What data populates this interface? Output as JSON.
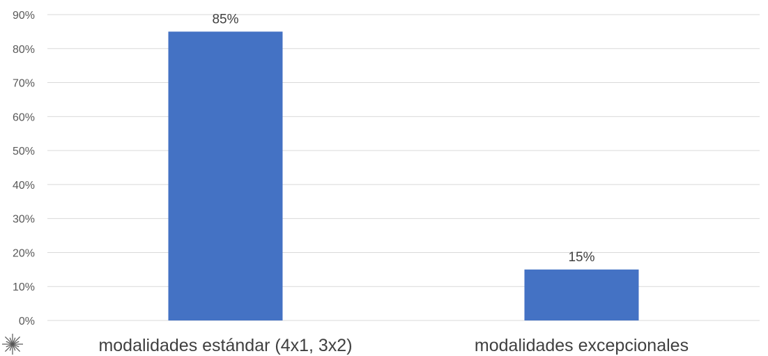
{
  "chart_data": {
    "type": "bar",
    "categories": [
      "modalidades estándar (4x1, 3x2)",
      "modalidades excepcionales"
    ],
    "values": [
      85,
      15
    ],
    "data_labels": [
      "85%",
      "15%"
    ],
    "title": "",
    "xlabel": "",
    "ylabel": "",
    "ylim": [
      0,
      90
    ],
    "yticks": [
      0,
      10,
      20,
      30,
      40,
      50,
      60,
      70,
      80,
      90
    ],
    "ytick_labels": [
      "0%",
      "10%",
      "20%",
      "30%",
      "40%",
      "50%",
      "60%",
      "70%",
      "80%",
      "90%"
    ],
    "grid": true,
    "legend": "none",
    "bar_color": "#4472c4",
    "grid_color": "#d9d9d9"
  },
  "decorations": {
    "corner_emblem": "sunburst-icon"
  }
}
